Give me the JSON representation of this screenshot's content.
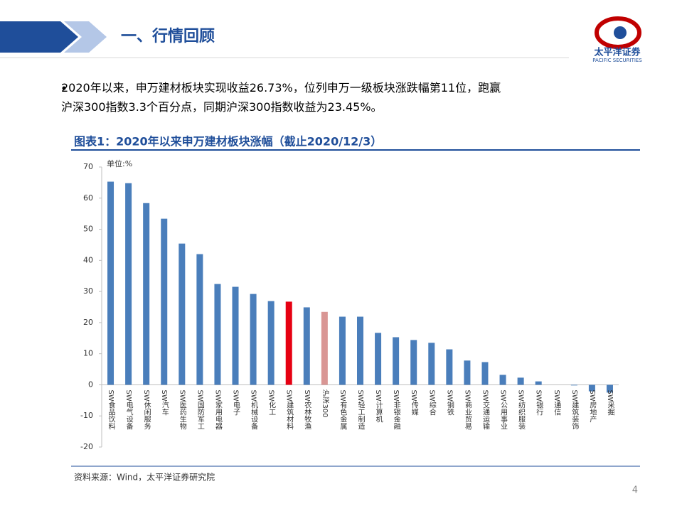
{
  "header": {
    "title": "一、行情回顾",
    "logo_name": "太平洋证券",
    "logo_sub": "PACIFIC SECURITIES"
  },
  "bullet": [
    "2020年以来，申万建材板块实现收益26.73%，位列申万一级板块涨跌幅第11位，跑赢",
    "沪深300指数3.3个百分点，同期沪深300指数收益为23.45%。"
  ],
  "chart_data": {
    "type": "bar",
    "title": "图表1：2020年以来申万建材板块涨幅（截止2020/12/3）",
    "unit": "单位:%",
    "categories": [
      "SW食品饮料",
      "SW电气设备",
      "SW休闲服务",
      "SW汽车",
      "SW医药生物",
      "SW国防军工",
      "SW家用电器",
      "SW电子",
      "SW机械设备",
      "SW化工",
      "SW建筑材料",
      "SW农林牧渔",
      "沪深300",
      "SW有色金属",
      "SW轻工制造",
      "SW计算机",
      "SW非银金融",
      "SW传媒",
      "SW综合",
      "SW钢铁",
      "SW商业贸易",
      "SW交通运输",
      "SW公用事业",
      "SW纺织服装",
      "SW银行",
      "SW通信",
      "SW建筑装饰",
      "SW房地产",
      "SW采掘"
    ],
    "values": [
      65.3,
      64.8,
      58.4,
      53.4,
      45.4,
      42.0,
      32.4,
      31.5,
      29.2,
      26.9,
      26.73,
      24.9,
      23.45,
      21.9,
      21.9,
      16.7,
      15.3,
      14.4,
      13.5,
      11.4,
      7.8,
      7.3,
      3.2,
      2.3,
      1.1,
      0,
      -0.2,
      -2.1,
      -2.5
    ],
    "colors": [
      "#4a7ebb",
      "#4a7ebb",
      "#4a7ebb",
      "#4a7ebb",
      "#4a7ebb",
      "#4a7ebb",
      "#4a7ebb",
      "#4a7ebb",
      "#4a7ebb",
      "#4a7ebb",
      "#e60012",
      "#4a7ebb",
      "#d99694",
      "#4a7ebb",
      "#4a7ebb",
      "#4a7ebb",
      "#4a7ebb",
      "#4a7ebb",
      "#4a7ebb",
      "#4a7ebb",
      "#4a7ebb",
      "#4a7ebb",
      "#4a7ebb",
      "#4a7ebb",
      "#4a7ebb",
      "#4a7ebb",
      "#4a7ebb",
      "#4a7ebb",
      "#4a7ebb"
    ],
    "ylim": [
      -20,
      70
    ],
    "yticks": [
      -20,
      -10,
      0,
      10,
      20,
      30,
      40,
      50,
      60,
      70
    ],
    "grid": false
  },
  "source": "资料来源：Wind，太平洋证券研究院",
  "page_number": "4"
}
